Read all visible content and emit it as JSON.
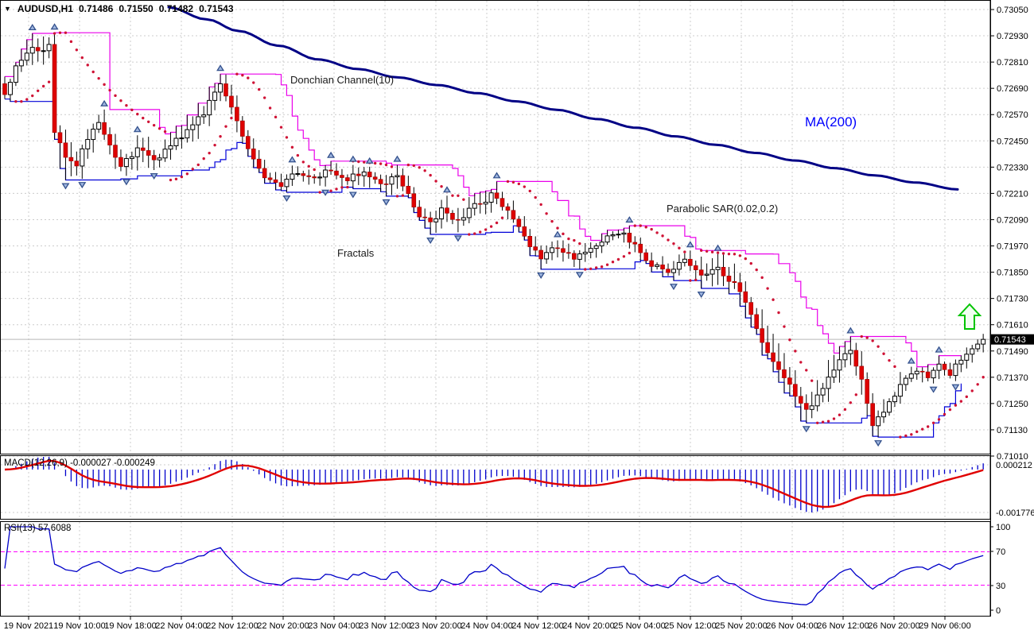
{
  "window": {
    "symbol_period": "AUDUSD,H1",
    "open": "0.71486",
    "high": "0.71550",
    "low": "0.71482",
    "close": "0.71543"
  },
  "annotations": {
    "donchian": "Donchian Channel(10)",
    "ma": "MA(200)",
    "sar": "Parabolic SAR(0.02,0.2)",
    "fractals": "Fractals"
  },
  "price_axis": {
    "labels": [
      "0.73050",
      "0.72930",
      "0.72810",
      "0.72690",
      "0.72570",
      "0.72450",
      "0.72330",
      "0.72210",
      "0.72090",
      "0.71970",
      "0.71850",
      "0.71730",
      "0.71610",
      "0.71490",
      "0.71370",
      "0.71250",
      "0.71130",
      "0.71010"
    ],
    "current": "0.71543"
  },
  "time_axis": {
    "labels": [
      "19 Nov 2021",
      "19 Nov 10:00",
      "19 Nov 18:00",
      "22 Nov 04:00",
      "22 Nov 12:00",
      "22 Nov 20:00",
      "23 Nov 04:00",
      "23 Nov 12:00",
      "23 Nov 20:00",
      "24 Nov 04:00",
      "24 Nov 12:00",
      "24 Nov 20:00",
      "25 Nov 04:00",
      "25 Nov 12:00",
      "25 Nov 20:00",
      "26 Nov 04:00",
      "26 Nov 12:00",
      "26 Nov 20:00",
      "29 Nov 06:00"
    ]
  },
  "macd_panel": {
    "label": "MACD(12,26,9) -0.000027 -0.000249",
    "axis_labels": [
      "0.000212",
      "-0.001776"
    ]
  },
  "rsi_panel": {
    "label": "RSI(13) 57.6088",
    "axis_labels": [
      "100",
      "70",
      "30",
      "0"
    ]
  },
  "colors": {
    "candle_up_fill": "#ffffff",
    "candle_down_fill": "#de0202",
    "candle_border": "#000000",
    "donchian_upper": "#ea00ea",
    "donchian_lower": "#0000d8",
    "sar_dots": "#cf1235",
    "ma200": "#000085",
    "macd_hist": "#0000cc",
    "macd_signal": "#e00000",
    "rsi_line": "#0000c8",
    "rsi_levels": "#ff00ff",
    "grid": "#cccccc",
    "current_price_line": "#b8b8b8",
    "badge_bg": "#000000",
    "badge_text": "#ffffff",
    "signal_arrow": "#00c400"
  },
  "chart_data": {
    "type": "candlestick",
    "symbol": "AUDUSD",
    "timeframe": "H1",
    "title": "AUDUSD,H1 0.71486 0.71550 0.71482 0.71543",
    "price_range": [
      0.7101,
      0.7305
    ],
    "grid_price_step": 0.0012,
    "bars": 178,
    "last_price": 0.71543,
    "indicators": [
      "MA(200)",
      "Donchian Channel(10)",
      "Parabolic SAR(0.02,0.2)",
      "Fractals",
      "MACD(12,26,9)",
      "RSI(13)"
    ],
    "close_keypoints": [
      [
        0,
        0.7266
      ],
      [
        2,
        0.728
      ],
      [
        5,
        0.7289
      ],
      [
        7,
        0.7285
      ],
      [
        8,
        0.7288
      ],
      [
        9,
        0.725
      ],
      [
        11,
        0.7238
      ],
      [
        13,
        0.7233
      ],
      [
        15,
        0.7247
      ],
      [
        17,
        0.7254
      ],
      [
        19,
        0.7242
      ],
      [
        21,
        0.7233
      ],
      [
        24,
        0.7241
      ],
      [
        27,
        0.7236
      ],
      [
        30,
        0.7243
      ],
      [
        33,
        0.7249
      ],
      [
        36,
        0.7258
      ],
      [
        39,
        0.7271
      ],
      [
        41,
        0.7261
      ],
      [
        43,
        0.7247
      ],
      [
        45,
        0.7236
      ],
      [
        47,
        0.7229
      ],
      [
        50,
        0.7225
      ],
      [
        53,
        0.7231
      ],
      [
        56,
        0.7227
      ],
      [
        59,
        0.7232
      ],
      [
        62,
        0.7228
      ],
      [
        65,
        0.7231
      ],
      [
        68,
        0.7225
      ],
      [
        71,
        0.7229
      ],
      [
        73,
        0.7221
      ],
      [
        75,
        0.7211
      ],
      [
        77,
        0.7207
      ],
      [
        79,
        0.7213
      ],
      [
        82,
        0.7209
      ],
      [
        85,
        0.7215
      ],
      [
        88,
        0.722
      ],
      [
        91,
        0.7213
      ],
      [
        93,
        0.7205
      ],
      [
        95,
        0.7196
      ],
      [
        97,
        0.7192
      ],
      [
        100,
        0.7197
      ],
      [
        103,
        0.7191
      ],
      [
        106,
        0.7196
      ],
      [
        109,
        0.7201
      ],
      [
        112,
        0.7202
      ],
      [
        115,
        0.7195
      ],
      [
        117,
        0.7188
      ],
      [
        120,
        0.7185
      ],
      [
        123,
        0.719
      ],
      [
        126,
        0.7183
      ],
      [
        129,
        0.7187
      ],
      [
        131,
        0.7182
      ],
      [
        133,
        0.7176
      ],
      [
        135,
        0.7166
      ],
      [
        137,
        0.7153
      ],
      [
        139,
        0.7144
      ],
      [
        141,
        0.7136
      ],
      [
        143,
        0.7129
      ],
      [
        145,
        0.7121
      ],
      [
        147,
        0.7129
      ],
      [
        149,
        0.7137
      ],
      [
        151,
        0.7145
      ],
      [
        153,
        0.7148
      ],
      [
        155,
        0.7136
      ],
      [
        156,
        0.7124
      ],
      [
        157,
        0.7115
      ],
      [
        159,
        0.7121
      ],
      [
        161,
        0.7129
      ],
      [
        163,
        0.7136
      ],
      [
        165,
        0.7141
      ],
      [
        167,
        0.7137
      ],
      [
        169,
        0.7143
      ],
      [
        171,
        0.7139
      ],
      [
        173,
        0.7145
      ],
      [
        175,
        0.715
      ],
      [
        177,
        0.71543
      ]
    ],
    "wick_keypoints": [
      [
        0,
        0.0005
      ],
      [
        8,
        0.0009
      ],
      [
        10,
        0.0012
      ],
      [
        15,
        0.0006
      ],
      [
        39,
        0.0007
      ],
      [
        50,
        0.0004
      ],
      [
        75,
        0.0006
      ],
      [
        95,
        0.0005
      ],
      [
        120,
        0.0004
      ],
      [
        137,
        0.001
      ],
      [
        145,
        0.0009
      ],
      [
        157,
        0.0007
      ],
      [
        170,
        0.0004
      ],
      [
        177,
        0.0004
      ]
    ],
    "ma200_keypoints": [
      [
        212,
        0.7306
      ],
      [
        260,
        0.73005
      ],
      [
        300,
        0.72952
      ],
      [
        350,
        0.72885
      ],
      [
        400,
        0.72822
      ],
      [
        450,
        0.72778
      ],
      [
        500,
        0.7274
      ],
      [
        550,
        0.72705
      ],
      [
        600,
        0.72668
      ],
      [
        650,
        0.7263
      ],
      [
        700,
        0.72592
      ],
      [
        750,
        0.7255
      ],
      [
        800,
        0.7251
      ],
      [
        850,
        0.7247
      ],
      [
        900,
        0.72432
      ],
      [
        950,
        0.72395
      ],
      [
        1000,
        0.7236
      ],
      [
        1050,
        0.72325
      ],
      [
        1100,
        0.72292
      ],
      [
        1150,
        0.7226
      ],
      [
        1205,
        0.72228
      ]
    ],
    "macd": {
      "params": [
        12,
        26,
        9
      ],
      "last_main": -2.7e-05,
      "last_signal": -0.000249,
      "axis_top": 0.000212,
      "axis_bottom": -0.001776
    },
    "rsi": {
      "period": 13,
      "last": 57.6088,
      "levels": [
        70,
        30
      ],
      "axis": [
        100,
        70,
        30,
        0
      ]
    },
    "donchian_period": 10,
    "sar_params": [
      0.02,
      0.2
    ]
  }
}
